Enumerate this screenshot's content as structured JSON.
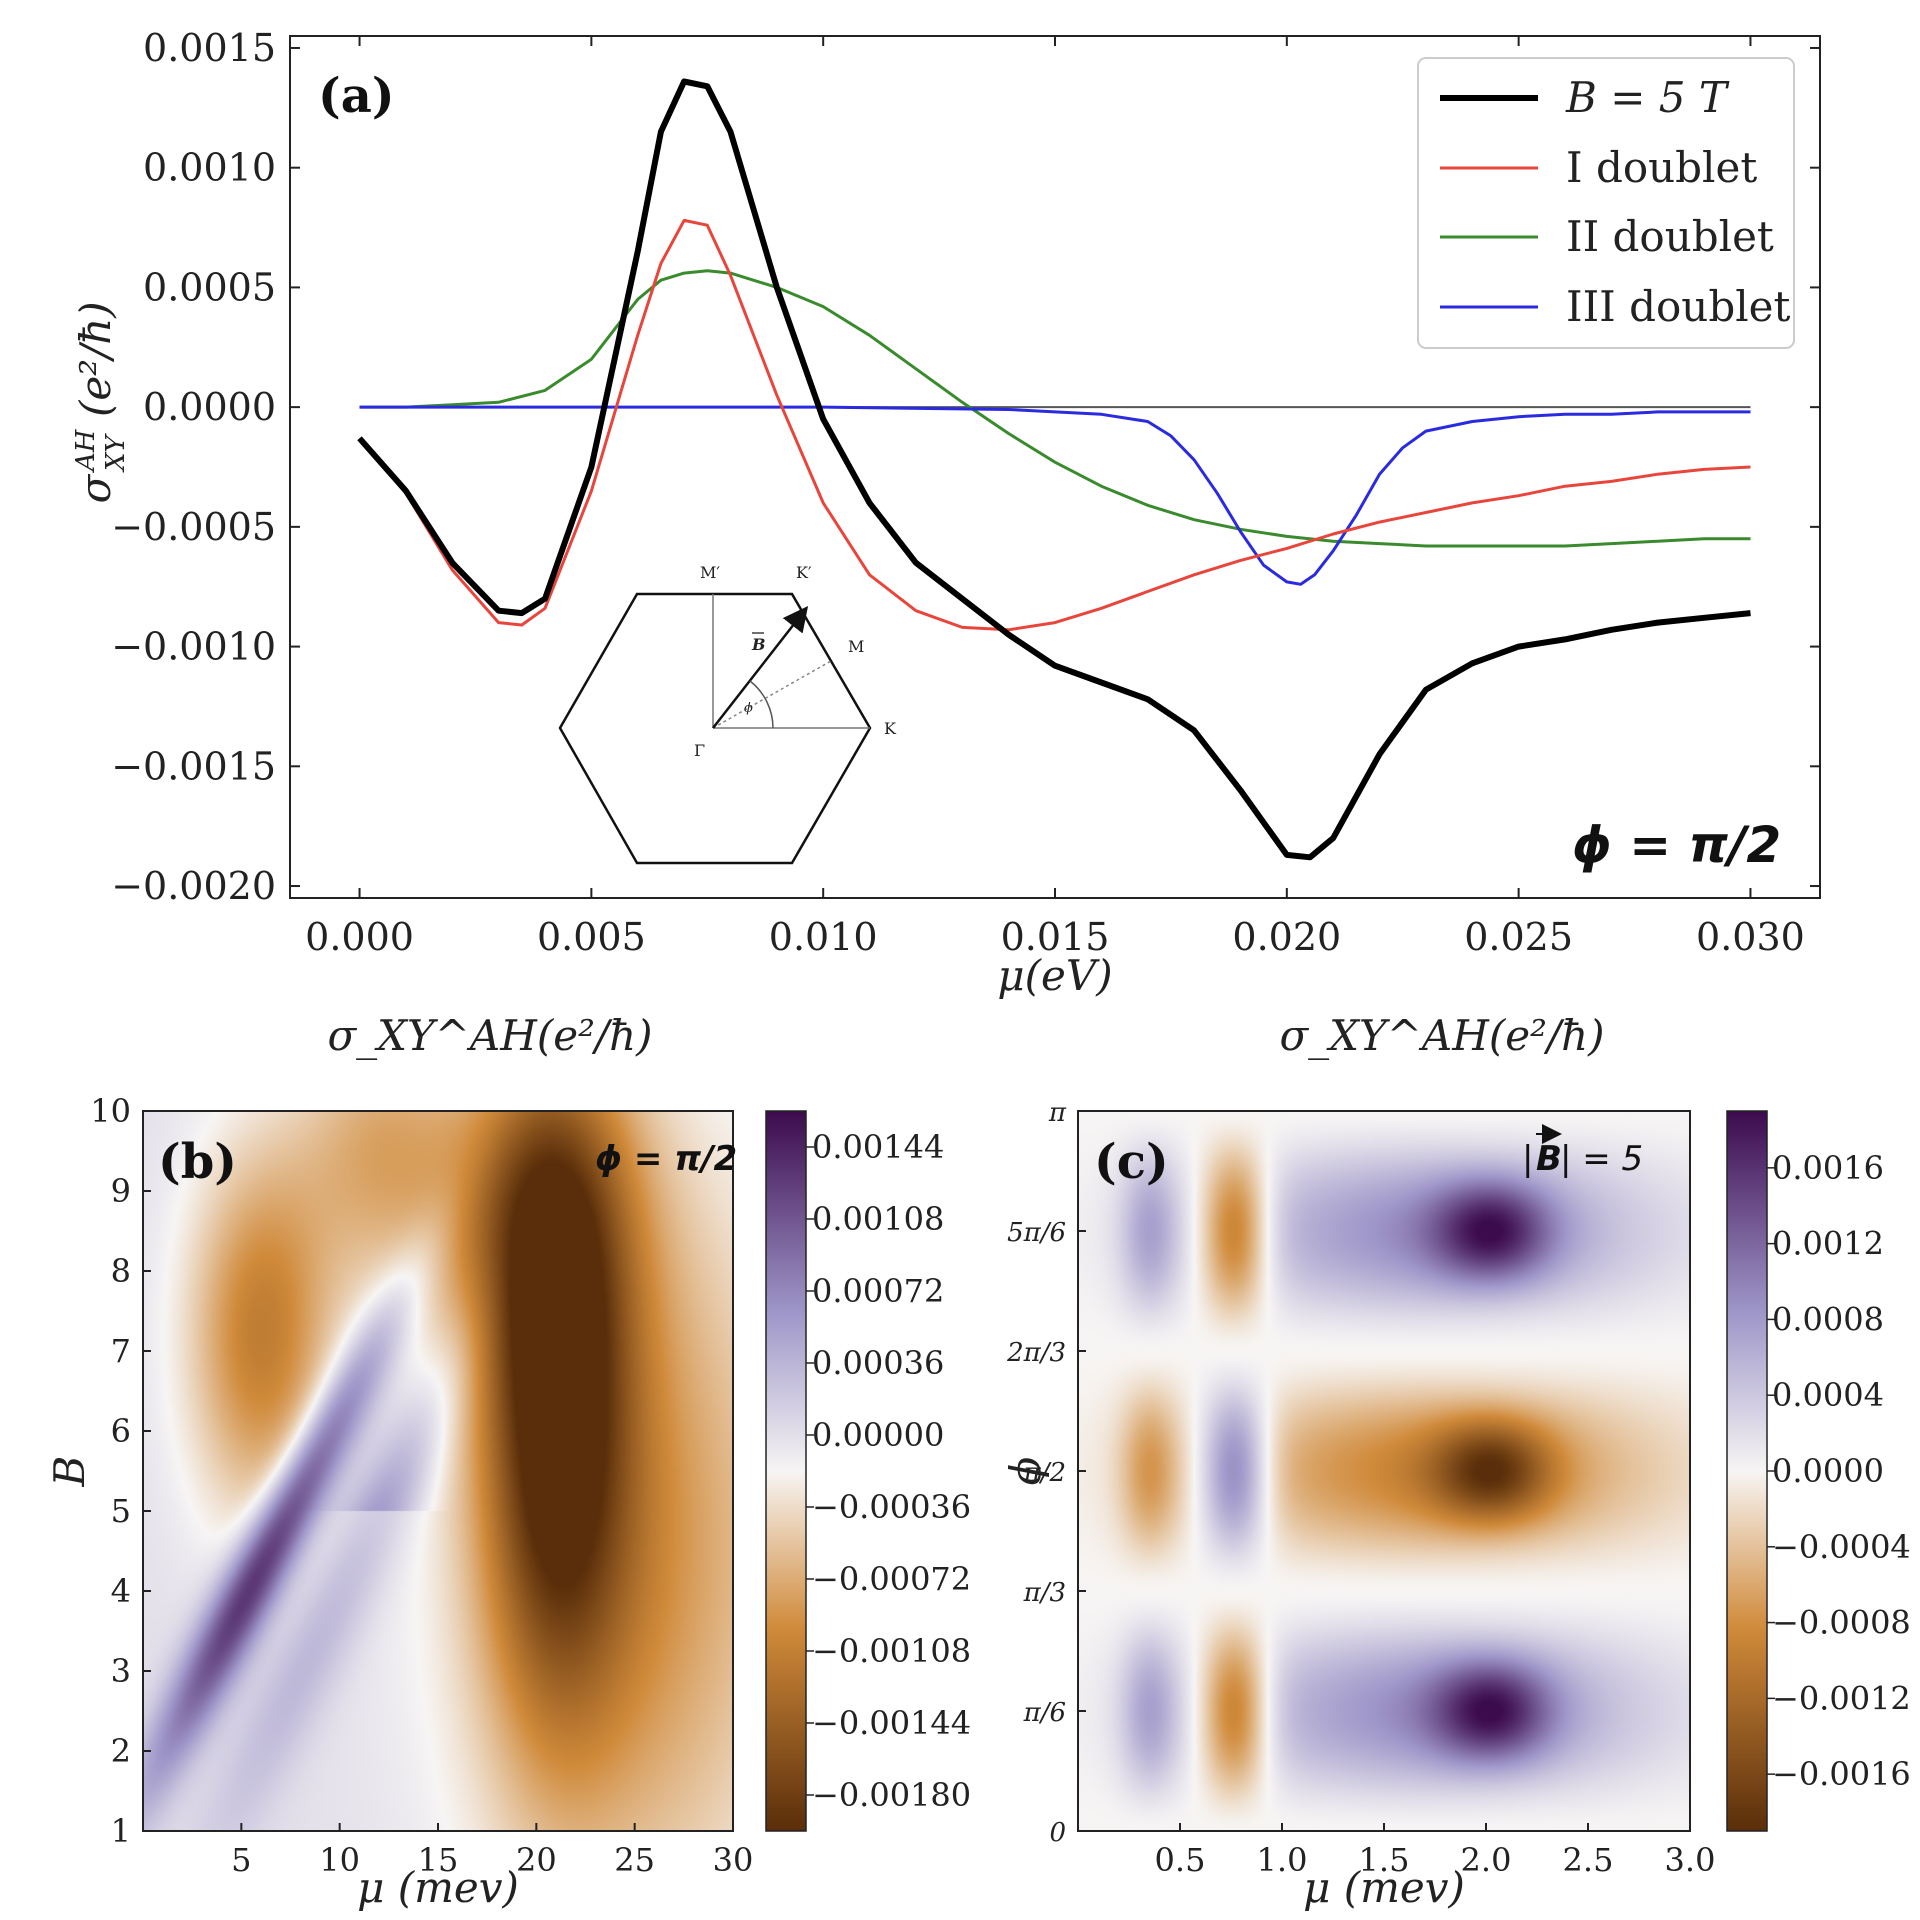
{
  "chart_data": [
    {
      "panel": "(a)",
      "type": "line",
      "xlabel": "μ(eV)",
      "ylabel": "σ_XY^AH (e²/ħ)",
      "ylabel_main": "σ",
      "ylabel_sup": "AH",
      "ylabel_sub": "XY",
      "ylabel_unit": "(e²/ħ)",
      "xlim": [
        -0.0015,
        0.0315
      ],
      "ylim": [
        -0.00205,
        0.00155
      ],
      "xticks": [
        0.0,
        0.005,
        0.01,
        0.015,
        0.02,
        0.025,
        0.03
      ],
      "xtick_labels": [
        "0.000",
        "0.005",
        "0.010",
        "0.015",
        "0.020",
        "0.025",
        "0.030"
      ],
      "yticks": [
        0.0015,
        0.001,
        0.0005,
        0.0,
        -0.0005,
        -0.001,
        -0.0015,
        -0.002
      ],
      "ytick_labels": [
        "0.0015",
        "0.0010",
        "0.0005",
        "0.0000",
        "−0.0005",
        "−0.0010",
        "−0.0015",
        "−0.0020"
      ],
      "annotation": "ϕ = π/2",
      "inset": {
        "labels": {
          "Mp": "M′",
          "Kp": "K′",
          "M": "M",
          "K": "K",
          "Gamma": "Γ",
          "B": "B",
          "phi": "ϕ"
        }
      },
      "series": [
        {
          "name": "B = 5 T",
          "color": "#000000",
          "width": 6,
          "x": [
            0,
            0.001,
            0.002,
            0.003,
            0.0035,
            0.004,
            0.005,
            0.006,
            0.0065,
            0.007,
            0.0075,
            0.008,
            0.009,
            0.01,
            0.011,
            0.012,
            0.013,
            0.014,
            0.015,
            0.016,
            0.017,
            0.018,
            0.019,
            0.02,
            0.0205,
            0.021,
            0.022,
            0.023,
            0.024,
            0.025,
            0.026,
            0.027,
            0.028,
            0.029,
            0.03
          ],
          "y": [
            -0.00013,
            -0.00035,
            -0.00065,
            -0.00085,
            -0.00086,
            -0.0008,
            -0.00025,
            0.00065,
            0.00115,
            0.00136,
            0.00134,
            0.00115,
            0.0005,
            -5e-05,
            -0.0004,
            -0.00065,
            -0.0008,
            -0.00095,
            -0.00108,
            -0.00115,
            -0.00122,
            -0.00135,
            -0.0016,
            -0.00187,
            -0.00188,
            -0.0018,
            -0.00145,
            -0.00118,
            -0.00107,
            -0.001,
            -0.00097,
            -0.00093,
            -0.0009,
            -0.00088,
            -0.00086
          ]
        },
        {
          "name": "I doublet",
          "color": "#e8463c",
          "width": 3,
          "x": [
            0,
            0.001,
            0.002,
            0.003,
            0.0035,
            0.004,
            0.005,
            0.006,
            0.0065,
            0.007,
            0.0075,
            0.008,
            0.009,
            0.01,
            0.011,
            0.012,
            0.013,
            0.014,
            0.015,
            0.016,
            0.017,
            0.018,
            0.019,
            0.02,
            0.021,
            0.022,
            0.023,
            0.024,
            0.025,
            0.026,
            0.027,
            0.028,
            0.029,
            0.03
          ],
          "y": [
            -0.00013,
            -0.00036,
            -0.00068,
            -0.0009,
            -0.00091,
            -0.00084,
            -0.00035,
            0.0003,
            0.0006,
            0.00078,
            0.00076,
            0.00055,
            5e-05,
            -0.0004,
            -0.0007,
            -0.00085,
            -0.00092,
            -0.00093,
            -0.0009,
            -0.00084,
            -0.00077,
            -0.0007,
            -0.00064,
            -0.00059,
            -0.00053,
            -0.00048,
            -0.00044,
            -0.0004,
            -0.00037,
            -0.00033,
            -0.00031,
            -0.00028,
            -0.00026,
            -0.00025
          ]
        },
        {
          "name": "II doublet",
          "color": "#3a8a2e",
          "width": 3,
          "x": [
            0,
            0.001,
            0.002,
            0.003,
            0.004,
            0.005,
            0.006,
            0.0065,
            0.007,
            0.0075,
            0.008,
            0.009,
            0.01,
            0.011,
            0.012,
            0.013,
            0.014,
            0.015,
            0.016,
            0.017,
            0.018,
            0.019,
            0.02,
            0.021,
            0.022,
            0.023,
            0.024,
            0.025,
            0.026,
            0.027,
            0.028,
            0.029,
            0.03
          ],
          "y": [
            0,
            0,
            1e-05,
            2e-05,
            7e-05,
            0.0002,
            0.00045,
            0.00053,
            0.00056,
            0.00057,
            0.00056,
            0.0005,
            0.00042,
            0.0003,
            0.00016,
            2e-05,
            -0.00011,
            -0.00023,
            -0.00033,
            -0.00041,
            -0.00047,
            -0.00051,
            -0.00054,
            -0.00056,
            -0.00057,
            -0.00058,
            -0.00058,
            -0.00058,
            -0.00058,
            -0.00057,
            -0.00056,
            -0.00055,
            -0.00055
          ]
        },
        {
          "name": "III doublet",
          "color": "#2a2ae0",
          "width": 3,
          "x": [
            0,
            0.005,
            0.01,
            0.014,
            0.016,
            0.017,
            0.0175,
            0.018,
            0.0185,
            0.019,
            0.0195,
            0.02,
            0.0203,
            0.0206,
            0.021,
            0.0215,
            0.022,
            0.0225,
            0.023,
            0.024,
            0.025,
            0.026,
            0.027,
            0.028,
            0.029,
            0.03
          ],
          "y": [
            0,
            0,
            0,
            -1e-05,
            -3e-05,
            -6e-05,
            -0.00012,
            -0.00022,
            -0.00036,
            -0.00052,
            -0.00066,
            -0.00073,
            -0.00074,
            -0.0007,
            -0.0006,
            -0.00045,
            -0.00028,
            -0.00017,
            -0.0001,
            -6e-05,
            -4e-05,
            -3e-05,
            -3e-05,
            -2e-05,
            -2e-05,
            -2e-05
          ]
        },
        {
          "name": "zero line",
          "color": "#555555",
          "width": 2,
          "x": [
            0,
            0.03
          ],
          "y": [
            0,
            0
          ]
        }
      ]
    },
    {
      "panel": "(b)",
      "type": "heatmap",
      "title": "σ_XY^AH(e²/ħ)",
      "xlabel": "μ (mev)",
      "ylabel": "B",
      "xlim": [
        0,
        30
      ],
      "ylim": [
        1,
        10
      ],
      "xticks": [
        5,
        10,
        15,
        20,
        25,
        30
      ],
      "yticks": [
        1,
        2,
        3,
        4,
        5,
        6,
        7,
        8,
        9,
        10
      ],
      "annotation": "ϕ = π/2",
      "colorbar_ticks": [
        0.00144,
        0.00108,
        0.00072,
        0.00036,
        0.0,
        -0.00036,
        -0.00072,
        -0.00108,
        -0.00144,
        -0.0018
      ],
      "colorbar_labels": [
        "0.00144",
        "0.00108",
        "0.00072",
        "0.00036",
        "0.00000",
        "−0.00036",
        "−0.00072",
        "−0.00108",
        "−0.00144",
        "−0.00180"
      ],
      "colorbar_range": [
        -0.00198,
        0.00162
      ]
    },
    {
      "panel": "(c)",
      "type": "heatmap",
      "title": "σ_XY^AH(e²/ħ)",
      "xlabel": "μ (mev)",
      "ylabel": "ϕ",
      "xlim": [
        0,
        3
      ],
      "ylim": [
        0,
        3.14159
      ],
      "xticks": [
        0.5,
        1.0,
        1.5,
        2.0,
        2.5,
        3.0
      ],
      "xtick_labels": [
        "0.5",
        "1.0",
        "1.5",
        "2.0",
        "2.5",
        "3.0"
      ],
      "yticks": [
        0,
        0.5236,
        1.0472,
        1.5708,
        2.0944,
        2.618,
        3.1416
      ],
      "ytick_labels": [
        "0",
        "π/6",
        "π/3",
        "π/2",
        "2π/3",
        "5π/6",
        "π"
      ],
      "annotation": "|B| = 5",
      "annotation_parts": {
        "pre": "|",
        "vec": "B",
        "post": "| = 5"
      },
      "colorbar_ticks": [
        0.0016,
        0.0012,
        0.0008,
        0.0004,
        0.0,
        -0.0004,
        -0.0008,
        -0.0012,
        -0.0016
      ],
      "colorbar_labels": [
        "0.0016",
        "0.0012",
        "0.0008",
        "0.0004",
        "0.0000",
        "−0.0004",
        "−0.0008",
        "−0.0012",
        "−0.0016"
      ],
      "colorbar_range": [
        -0.0019,
        0.0019
      ]
    }
  ],
  "colors": {
    "neg_dark": "#5a2e0a",
    "neg_mid": "#d08a3a",
    "neutral": "#f7f5f4",
    "pos_mid": "#9f97c9",
    "pos_dark": "#3c0b4e"
  }
}
